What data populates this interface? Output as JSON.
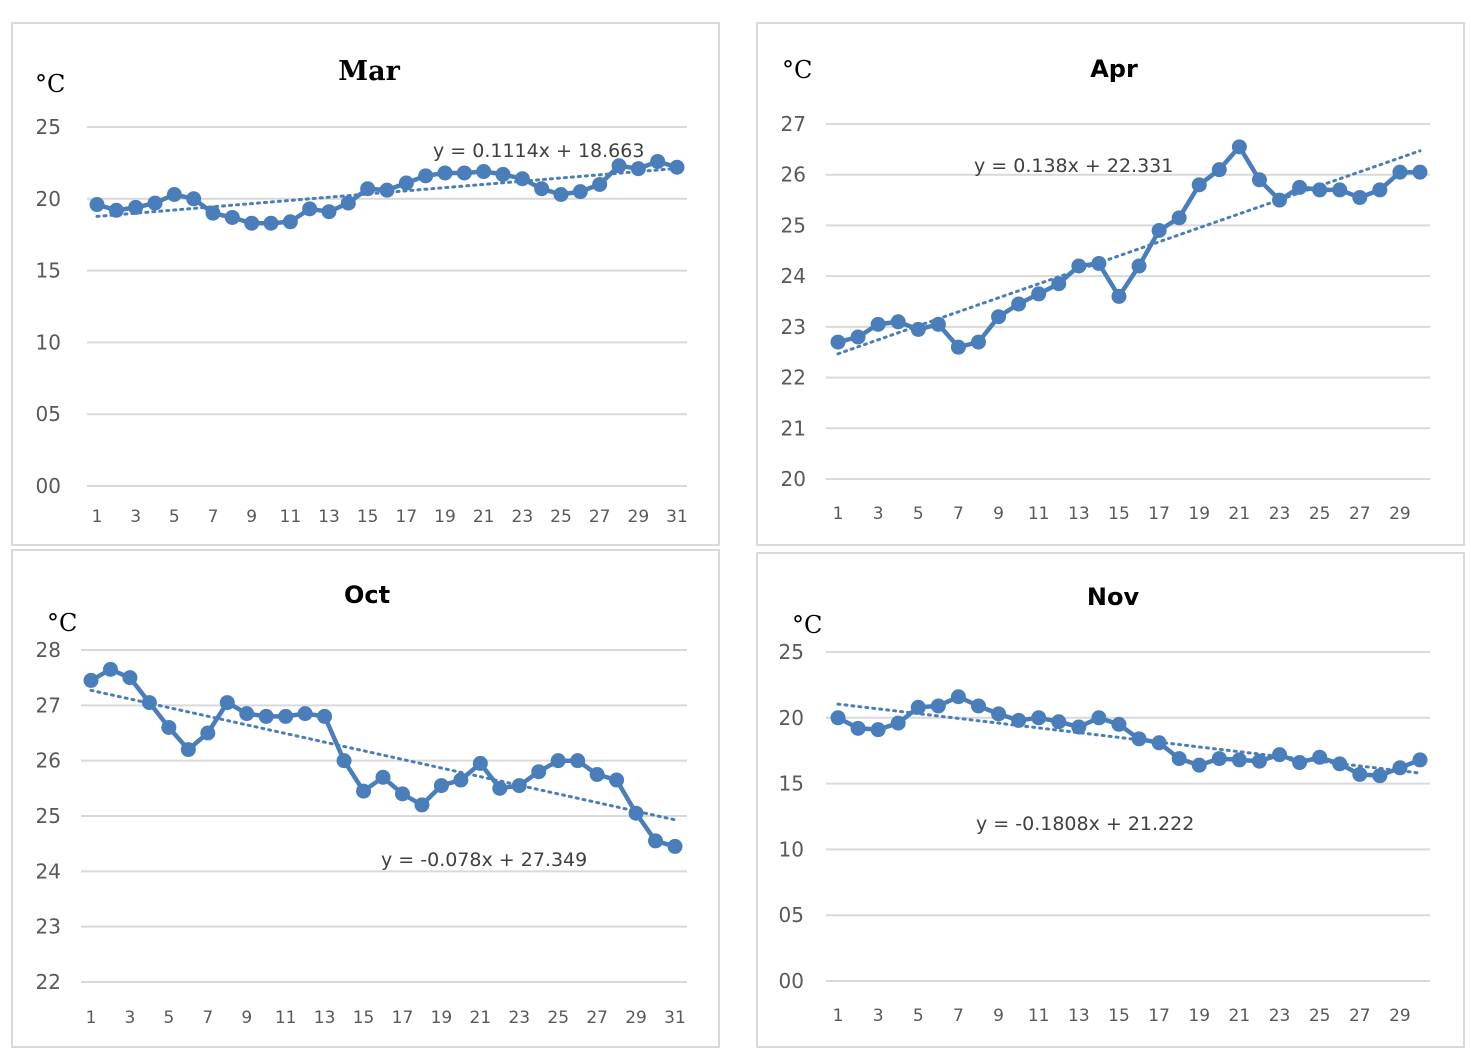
{
  "chart_data": [
    {
      "type": "line",
      "title": "Mar",
      "ylabel": "°C",
      "yticks": [
        "00",
        "05",
        "10",
        "15",
        "20",
        "25"
      ],
      "ylim": [
        0,
        25
      ],
      "xticks": [
        "1",
        "3",
        "5",
        "7",
        "9",
        "11",
        "13",
        "15",
        "17",
        "19",
        "21",
        "23",
        "25",
        "27",
        "29",
        "31"
      ],
      "trendline": {
        "equation": "y = 0.1114x + 18.663",
        "slope": 0.1114,
        "intercept": 18.663
      },
      "x": [
        1,
        2,
        3,
        4,
        5,
        6,
        7,
        8,
        9,
        10,
        11,
        12,
        13,
        14,
        15,
        16,
        17,
        18,
        19,
        20,
        21,
        22,
        23,
        24,
        25,
        26,
        27,
        28,
        29,
        30,
        31
      ],
      "values": [
        19.6,
        19.2,
        19.4,
        19.7,
        20.3,
        20.0,
        19.0,
        18.7,
        18.3,
        18.3,
        18.4,
        19.3,
        19.1,
        19.7,
        20.7,
        20.6,
        21.1,
        21.6,
        21.8,
        21.8,
        21.9,
        21.7,
        21.4,
        20.7,
        20.3,
        20.5,
        21.0,
        22.3,
        22.1,
        22.6,
        22.2
      ]
    },
    {
      "type": "line",
      "title": "Apr",
      "ylabel": "°C",
      "yticks": [
        "20",
        "21",
        "22",
        "23",
        "24",
        "25",
        "26",
        "27"
      ],
      "ylim": [
        20,
        27
      ],
      "xticks": [
        "1",
        "3",
        "5",
        "7",
        "9",
        "11",
        "13",
        "15",
        "17",
        "19",
        "21",
        "23",
        "25",
        "27",
        "29"
      ],
      "trendline": {
        "equation": "y = 0.138x + 22.331",
        "slope": 0.138,
        "intercept": 22.331
      },
      "x": [
        1,
        2,
        3,
        4,
        5,
        6,
        7,
        8,
        9,
        10,
        11,
        12,
        13,
        14,
        15,
        16,
        17,
        18,
        19,
        20,
        21,
        22,
        23,
        24,
        25,
        26,
        27,
        28,
        29,
        30
      ],
      "values": [
        22.7,
        22.8,
        23.05,
        23.1,
        22.95,
        23.05,
        22.6,
        22.7,
        23.2,
        23.45,
        23.65,
        23.85,
        24.2,
        24.25,
        23.6,
        24.2,
        24.9,
        25.15,
        25.8,
        26.1,
        26.55,
        25.9,
        25.5,
        25.75,
        25.7,
        25.7,
        25.55,
        25.7,
        26.05,
        26.05
      ]
    },
    {
      "type": "line",
      "title": "Oct",
      "ylabel": "°C",
      "yticks": [
        "22",
        "23",
        "24",
        "25",
        "26",
        "27",
        "28"
      ],
      "ylim": [
        22,
        28
      ],
      "xticks": [
        "1",
        "3",
        "5",
        "7",
        "9",
        "11",
        "13",
        "15",
        "17",
        "19",
        "21",
        "23",
        "25",
        "27",
        "29",
        "31"
      ],
      "trendline": {
        "equation": "y = -0.078x + 27.349",
        "slope": -0.078,
        "intercept": 27.349
      },
      "x": [
        1,
        2,
        3,
        4,
        5,
        6,
        7,
        8,
        9,
        10,
        11,
        12,
        13,
        14,
        15,
        16,
        17,
        18,
        19,
        20,
        21,
        22,
        23,
        24,
        25,
        26,
        27,
        28,
        29,
        30,
        31
      ],
      "values": [
        27.45,
        27.65,
        27.5,
        27.05,
        26.6,
        26.2,
        26.5,
        27.05,
        26.85,
        26.8,
        26.8,
        26.85,
        26.8,
        26.0,
        25.45,
        25.7,
        25.4,
        25.2,
        25.55,
        25.65,
        25.95,
        25.5,
        25.55,
        25.8,
        26.0,
        26.0,
        25.75,
        25.65,
        25.05,
        24.55,
        24.45
      ]
    },
    {
      "type": "line",
      "title": "Nov",
      "ylabel": "°C",
      "yticks": [
        "00",
        "05",
        "10",
        "15",
        "20",
        "25"
      ],
      "ylim": [
        0,
        25
      ],
      "xticks": [
        "1",
        "3",
        "5",
        "7",
        "9",
        "11",
        "13",
        "15",
        "17",
        "19",
        "21",
        "23",
        "25",
        "27",
        "29"
      ],
      "trendline": {
        "equation": "y = -0.1808x + 21.222",
        "slope": -0.1808,
        "intercept": 21.222
      },
      "x": [
        1,
        2,
        3,
        4,
        5,
        6,
        7,
        8,
        9,
        10,
        11,
        12,
        13,
        14,
        15,
        16,
        17,
        18,
        19,
        20,
        21,
        22,
        23,
        24,
        25,
        26,
        27,
        28,
        29,
        30
      ],
      "values": [
        20.0,
        19.2,
        19.1,
        19.6,
        20.8,
        20.9,
        21.6,
        20.9,
        20.3,
        19.8,
        20.0,
        19.7,
        19.3,
        20.0,
        19.5,
        18.4,
        18.1,
        16.9,
        16.4,
        16.9,
        16.8,
        16.7,
        17.2,
        16.6,
        17.0,
        16.5,
        15.7,
        15.6,
        16.2,
        16.8
      ]
    }
  ],
  "colors": {
    "series": "#4a7ebb",
    "gridline": "#d9d9d9",
    "tick_text": "#595959",
    "panel_border": "#d9d9d9"
  },
  "layout_notes": {
    "trendline_style": "dotted linear",
    "marker": "circle",
    "grid": "horizontal only",
    "legend": "none"
  }
}
